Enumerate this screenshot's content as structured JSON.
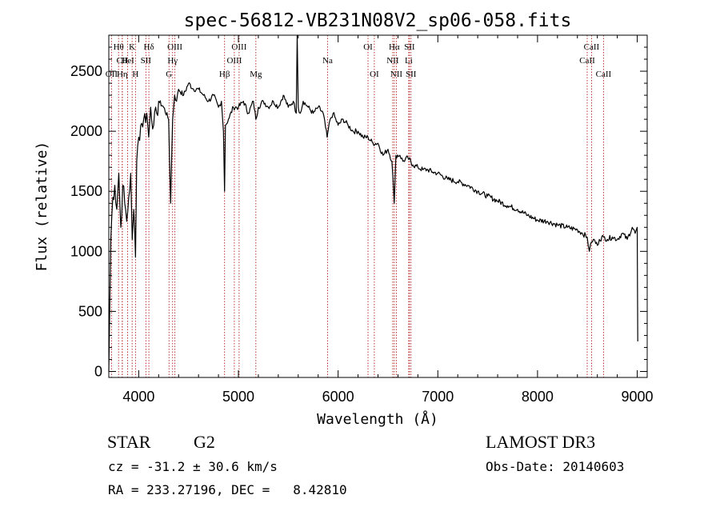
{
  "chart_data": {
    "type": "line",
    "title": "spec-56812-VB231N08V2_sp06-058.fits",
    "xlabel": "Wavelength (Å)",
    "ylabel": "Flux (relative)",
    "xlim": [
      3700,
      9100
    ],
    "ylim": [
      -50,
      2800
    ],
    "xticks": [
      4000,
      5000,
      6000,
      7000,
      8000,
      9000
    ],
    "yticks": [
      0,
      500,
      1000,
      1500,
      2000,
      2500
    ],
    "series": [
      {
        "name": "flux",
        "x": [
          3700,
          3720,
          3740,
          3760,
          3780,
          3800,
          3820,
          3840,
          3860,
          3880,
          3900,
          3920,
          3935,
          3950,
          3968,
          3980,
          4000,
          4020,
          4050,
          4080,
          4100,
          4120,
          4150,
          4180,
          4200,
          4250,
          4300,
          4320,
          4340,
          4360,
          4380,
          4400,
          4450,
          4500,
          4550,
          4600,
          4650,
          4700,
          4750,
          4800,
          4830,
          4850,
          4861,
          4870,
          4900,
          4950,
          5000,
          5050,
          5100,
          5150,
          5175,
          5200,
          5250,
          5300,
          5350,
          5400,
          5450,
          5500,
          5550,
          5580,
          5590,
          5600,
          5620,
          5650,
          5700,
          5750,
          5800,
          5850,
          5890,
          5920,
          5950,
          6000,
          6050,
          6100,
          6150,
          6200,
          6250,
          6300,
          6350,
          6400,
          6450,
          6500,
          6540,
          6563,
          6580,
          6620,
          6650,
          6700,
          6750,
          6800,
          6850,
          6900,
          6950,
          7000,
          7100,
          7200,
          7300,
          7400,
          7500,
          7600,
          7700,
          7800,
          7900,
          8000,
          8100,
          8200,
          8300,
          8400,
          8450,
          8498,
          8520,
          8542,
          8560,
          8600,
          8620,
          8662,
          8700,
          8750,
          8800,
          8850,
          8900,
          8950,
          8980,
          9000,
          9005
        ],
        "values": [
          0,
          1100,
          1450,
          1550,
          1350,
          1650,
          1200,
          1550,
          1400,
          1250,
          1450,
          1650,
          1100,
          1350,
          950,
          1750,
          1950,
          2050,
          2100,
          2150,
          1950,
          2200,
          2050,
          2150,
          2250,
          2200,
          2100,
          1400,
          2100,
          2300,
          2250,
          2350,
          2300,
          2400,
          2350,
          2350,
          2300,
          2250,
          2300,
          2200,
          2250,
          2000,
          1500,
          2050,
          2100,
          2200,
          2200,
          2250,
          2150,
          2250,
          2100,
          2200,
          2250,
          2200,
          2250,
          2200,
          2300,
          2200,
          2250,
          2150,
          2800,
          2200,
          2150,
          2250,
          2200,
          2150,
          2200,
          2150,
          1950,
          2100,
          2150,
          2050,
          2100,
          2050,
          2000,
          2000,
          1950,
          1950,
          1900,
          1900,
          1800,
          1850,
          1750,
          1400,
          1800,
          1800,
          1750,
          1780,
          1720,
          1700,
          1680,
          1680,
          1660,
          1650,
          1600,
          1580,
          1550,
          1500,
          1460,
          1420,
          1380,
          1350,
          1300,
          1260,
          1250,
          1220,
          1200,
          1180,
          1150,
          1120,
          1000,
          1080,
          1100,
          1050,
          1100,
          1120,
          1100,
          1120,
          1100,
          1150,
          1100,
          1200,
          1150,
          1200,
          250
        ]
      }
    ],
    "lines": [
      {
        "label": "Hθ",
        "x": 3798,
        "row": 0
      },
      {
        "label": "CII",
        "x": 3835,
        "row": 1
      },
      {
        "label": "OII",
        "x": 3727,
        "row": 2
      },
      {
        "label": "Hη",
        "x": 3835,
        "row": 2
      },
      {
        "label": "K",
        "x": 3934,
        "row": 0
      },
      {
        "label": "HeI",
        "x": 3889,
        "row": 1
      },
      {
        "label": "H",
        "x": 3968,
        "row": 2
      },
      {
        "label": "SII",
        "x": 4072,
        "row": 1
      },
      {
        "label": "Hδ",
        "x": 4102,
        "row": 0
      },
      {
        "label": "OIII",
        "x": 4363,
        "row": 0
      },
      {
        "label": "Hγ",
        "x": 4340,
        "row": 1
      },
      {
        "label": "G",
        "x": 4304,
        "row": 2
      },
      {
        "label": "Hβ",
        "x": 4861,
        "row": 2
      },
      {
        "label": "OIII",
        "x": 5007,
        "row": 0
      },
      {
        "label": "OIII",
        "x": 4959,
        "row": 1
      },
      {
        "label": "Mg",
        "x": 5175,
        "row": 2
      },
      {
        "label": "Na",
        "x": 5894,
        "row": 1
      },
      {
        "label": "OI",
        "x": 6300,
        "row": 0
      },
      {
        "label": "OI",
        "x": 6363,
        "row": 2
      },
      {
        "label": "Hα",
        "x": 6563,
        "row": 0
      },
      {
        "label": "NII",
        "x": 6548,
        "row": 1
      },
      {
        "label": "NII",
        "x": 6584,
        "row": 2
      },
      {
        "label": "SII",
        "x": 6716,
        "row": 0
      },
      {
        "label": "Li",
        "x": 6708,
        "row": 1
      },
      {
        "label": "SII",
        "x": 6731,
        "row": 2
      },
      {
        "label": "CaII",
        "x": 8542,
        "row": 0
      },
      {
        "label": "CaII",
        "x": 8498,
        "row": 1
      },
      {
        "label": "CaII",
        "x": 8662,
        "row": 2
      }
    ]
  },
  "info": {
    "class": "STAR",
    "subclass": "G2",
    "survey": "LAMOST DR3",
    "redshift": "cz = -31.2 ± 30.6 km/s",
    "obs_date": "Obs-Date: 20140603",
    "coords": "RA = 233.27196, DEC =   8.42810"
  },
  "colors": {
    "line_marker": "#b22222",
    "spectrum": "#000000"
  }
}
